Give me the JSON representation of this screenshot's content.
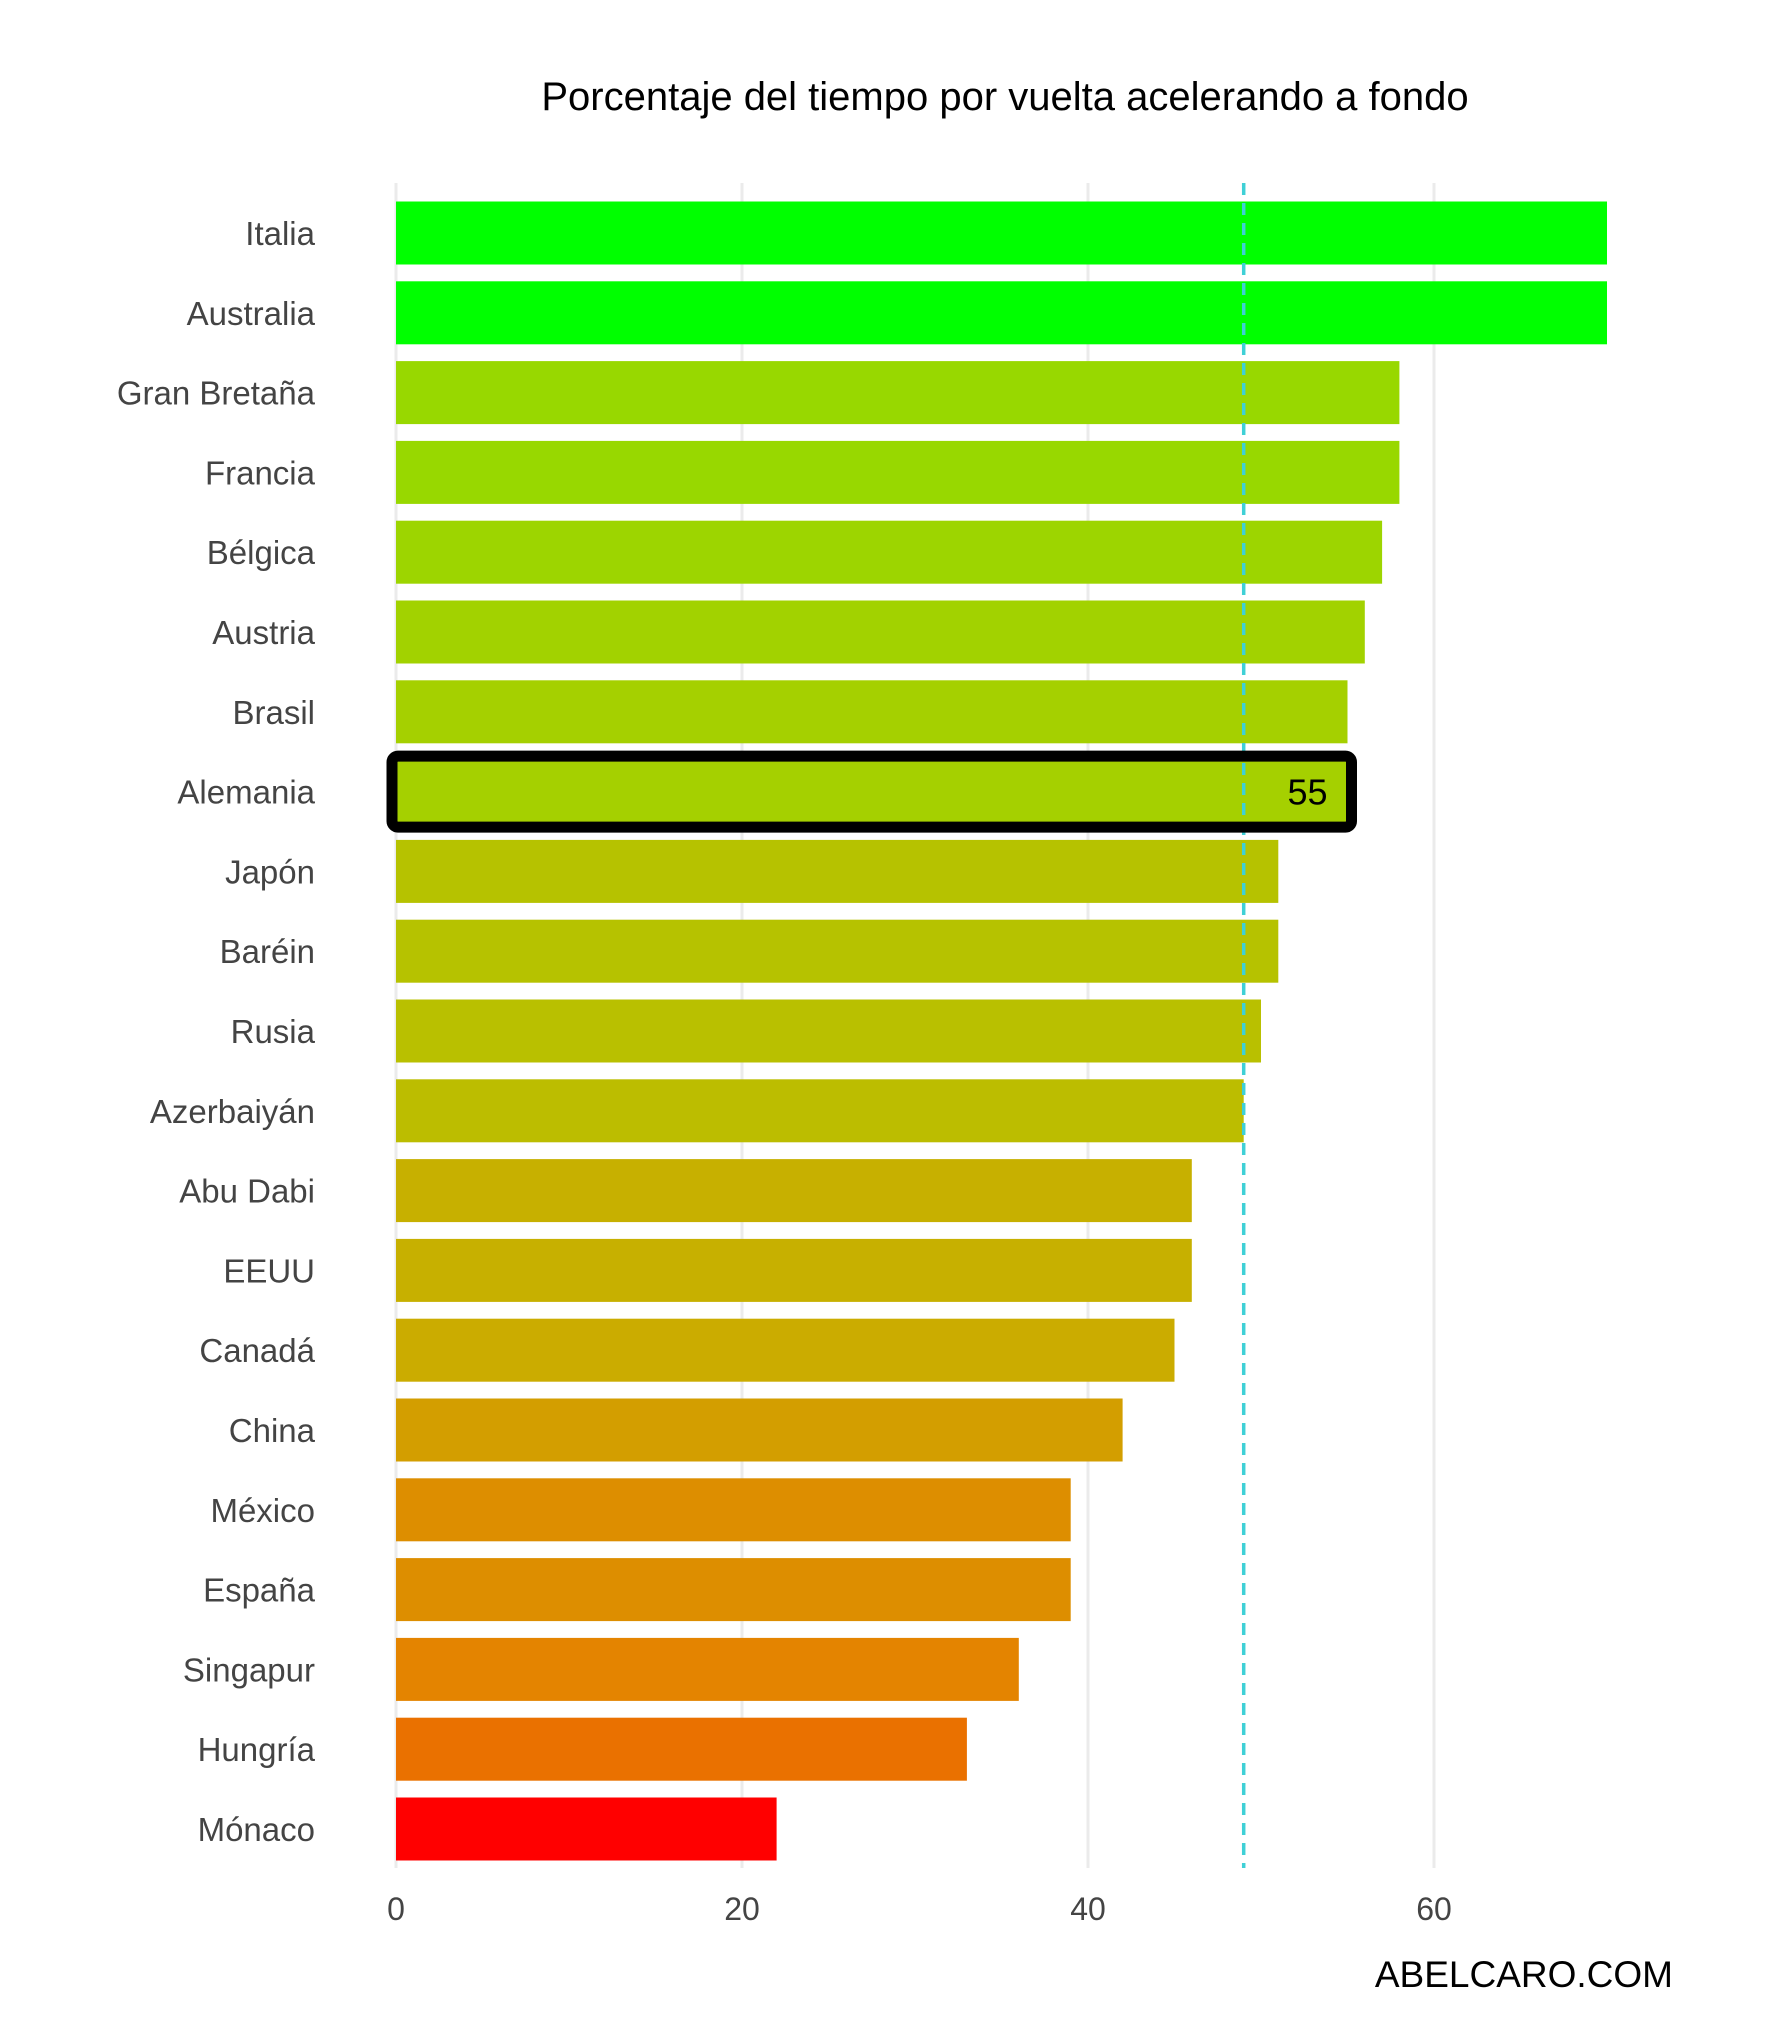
{
  "chart_data": {
    "type": "bar",
    "orientation": "horizontal",
    "title": "Porcentaje del tiempo por vuelta acelerando a fondo",
    "xlabel": "",
    "ylabel": "",
    "categories": [
      "Italia",
      "Australia",
      "Gran Bretaña",
      "Francia",
      "Bélgica",
      "Austria",
      "Brasil",
      "Alemania",
      "Japón",
      "Baréin",
      "Rusia",
      "Azerbaiyán",
      "Abu Dabi",
      "EEUU",
      "Canadá",
      "China",
      "México",
      "España",
      "Singapur",
      "Hungría",
      "Mónaco"
    ],
    "values": [
      70,
      70,
      58,
      58,
      57,
      56,
      55,
      55,
      51,
      51,
      50,
      49,
      46,
      46,
      45,
      42,
      39,
      39,
      36,
      33,
      22
    ],
    "colors": [
      "#00ff00",
      "#00ff00",
      "#98d800",
      "#98d800",
      "#9dd500",
      "#a2d200",
      "#a5d000",
      "#a5d000",
      "#b6c200",
      "#b6c200",
      "#b9c000",
      "#bcbd00",
      "#c7b000",
      "#c7b000",
      "#cbac00",
      "#d39e00",
      "#dd8e00",
      "#dd8e00",
      "#e48400",
      "#ea7100",
      "#ff0000"
    ],
    "xlim": [
      0,
      72
    ],
    "xticks": [
      0,
      20,
      40,
      60
    ],
    "xtick_labels": [
      "0",
      "20",
      "40",
      "60"
    ],
    "grid": true,
    "reference_line": {
      "value": 49,
      "style": "dashed",
      "color": "#3fd0d6"
    },
    "highlight": {
      "category": "Alemania",
      "label": "55"
    }
  },
  "watermark": "ABELCARO.COM"
}
